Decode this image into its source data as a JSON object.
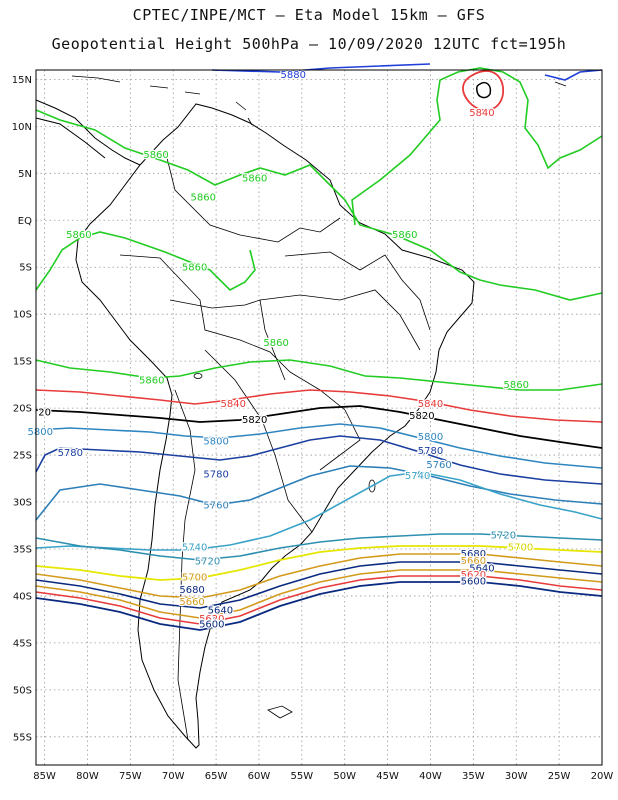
{
  "header": {
    "line1": "CPTEC/INPE/MCT –  Eta Model 15km – GFS",
    "line2": "Geopotential Height 500hPa – 10/09/2020 12UTC fct=195h"
  },
  "map": {
    "lon_range": [
      -86,
      -20
    ],
    "lat_range": [
      -58,
      16
    ],
    "grid": true,
    "lat_ticks": [
      "15N",
      "10N",
      "5N",
      "EQ",
      "5S",
      "10S",
      "15S",
      "20S",
      "25S",
      "30S",
      "35S",
      "40S",
      "45S",
      "50S",
      "55S"
    ],
    "lon_ticks": [
      "85W",
      "80W",
      "75W",
      "70W",
      "65W",
      "60W",
      "55W",
      "50W",
      "45W",
      "40W",
      "35W",
      "30W",
      "25W",
      "20W"
    ],
    "contour_colors": {
      "5880": "#1f3fd8",
      "5860": "#22cc22",
      "5840": "#e83a3a",
      "5820": "#000000",
      "5800": "#2e86c1",
      "5780": "#1b3fa0",
      "5760": "#2c7fb8",
      "5740": "#3aa3c8",
      "5720": "#2c8fb0",
      "5700": "#e6e600",
      "5680": "#d39a1a",
      "5660": "#0a2a80"
    },
    "contour_labels": [
      {
        "text": "5880",
        "color": "#1f3fd8",
        "lon": -56,
        "lat": 15.5
      },
      {
        "text": "5840",
        "color": "#e83a3a",
        "lon": -34,
        "lat": 11.5
      },
      {
        "text": "5860",
        "color": "#22cc22",
        "lon": -72,
        "lat": 7
      },
      {
        "text": "5860",
        "color": "#22cc22",
        "lon": -60.5,
        "lat": 4.5
      },
      {
        "text": "5860",
        "color": "#22cc22",
        "lon": -66.5,
        "lat": 2.5
      },
      {
        "text": "5860",
        "color": "#22cc22",
        "lon": -81,
        "lat": -1.5
      },
      {
        "text": "5860",
        "color": "#22cc22",
        "lon": -67.5,
        "lat": -5
      },
      {
        "text": "5860",
        "color": "#22cc22",
        "lon": -43,
        "lat": -1.5
      },
      {
        "text": "5860",
        "color": "#22cc22",
        "lon": -58,
        "lat": -13
      },
      {
        "text": "5860",
        "color": "#22cc22",
        "lon": -72.5,
        "lat": -17
      },
      {
        "text": "5860",
        "color": "#22cc22",
        "lon": -30,
        "lat": -17.5
      },
      {
        "text": "5840",
        "color": "#e83a3a",
        "lon": -63,
        "lat": -19.5
      },
      {
        "text": "5840",
        "color": "#e83a3a",
        "lon": -40,
        "lat": -19.5
      },
      {
        "text": "20",
        "color": "#000000",
        "lon": -85,
        "lat": -20.4
      },
      {
        "text": "5820",
        "color": "#000000",
        "lon": -60.5,
        "lat": -21.2
      },
      {
        "text": "5820",
        "color": "#000000",
        "lon": -41,
        "lat": -20.8
      },
      {
        "text": "5800",
        "color": "#2e86c1",
        "lon": -85.5,
        "lat": -22.5
      },
      {
        "text": "5800",
        "color": "#2e86c1",
        "lon": -65,
        "lat": -23.5
      },
      {
        "text": "5800",
        "color": "#2e86c1",
        "lon": -40,
        "lat": -23
      },
      {
        "text": "5780",
        "color": "#1b3fa0",
        "lon": -82,
        "lat": -24.7
      },
      {
        "text": "5780",
        "color": "#1b3fa0",
        "lon": -65,
        "lat": -27
      },
      {
        "text": "5780",
        "color": "#1b3fa0",
        "lon": -40,
        "lat": -24.5
      },
      {
        "text": "5760",
        "color": "#2c7fb8",
        "lon": -39,
        "lat": -26
      },
      {
        "text": "5760",
        "color": "#2c7fb8",
        "lon": -65,
        "lat": -30.3
      },
      {
        "text": "5740",
        "color": "#3aa3c8",
        "lon": -41.5,
        "lat": -27.2
      },
      {
        "text": "5740",
        "color": "#3aa3c8",
        "lon": -67.5,
        "lat": -34.8
      },
      {
        "text": "5720",
        "color": "#2c8fb0",
        "lon": -31.5,
        "lat": -33.5
      },
      {
        "text": "5720",
        "color": "#2c8fb0",
        "lon": -66,
        "lat": -36.3
      },
      {
        "text": "5700",
        "color": "#d6d600",
        "lon": -29.5,
        "lat": -34.8
      },
      {
        "text": "5700",
        "color": "#d39a1a",
        "lon": -67.5,
        "lat": -38
      },
      {
        "text": "5680",
        "color": "#0a2a80",
        "lon": -35,
        "lat": -35.5
      },
      {
        "text": "5680",
        "color": "#0a2a80",
        "lon": -67.8,
        "lat": -39.3
      },
      {
        "text": "5660",
        "color": "#d39a1a",
        "lon": -35,
        "lat": -36.2
      },
      {
        "text": "5660",
        "color": "#d39a1a",
        "lon": -67.8,
        "lat": -40.6
      },
      {
        "text": "5640",
        "color": "#0a2a80",
        "lon": -34,
        "lat": -37
      },
      {
        "text": "5640",
        "color": "#0a2a80",
        "lon": -64.5,
        "lat": -41.5
      },
      {
        "text": "5620",
        "color": "#e83a3a",
        "lon": -35,
        "lat": -37.7
      },
      {
        "text": "5620",
        "color": "#e83a3a",
        "lon": -65.5,
        "lat": -42.4
      },
      {
        "text": "5600",
        "color": "#0a2a80",
        "lon": -35,
        "lat": -38.4
      },
      {
        "text": "5600",
        "color": "#0a2a80",
        "lon": -65.5,
        "lat": -43
      }
    ]
  }
}
